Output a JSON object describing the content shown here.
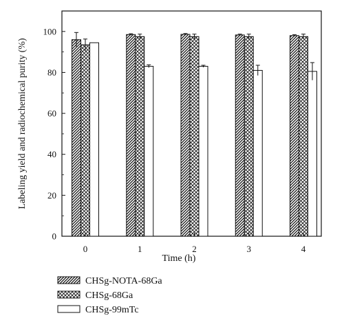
{
  "chart_data": {
    "type": "bar",
    "xlabel": "Time (h)",
    "ylabel": "Labeling yield and radiochemical purity (%)",
    "categories": [
      "0",
      "1",
      "2",
      "3",
      "4"
    ],
    "ylim": [
      0,
      110
    ],
    "yticks": [
      0,
      20,
      40,
      60,
      80,
      100
    ],
    "grid": false,
    "legend_position": "bottom-left",
    "series": [
      {
        "name": "CHSg-NOTA-68Ga",
        "pattern": "diagonal-hatch",
        "values": [
          96,
          98.5,
          98.6,
          98.3,
          98
        ],
        "errors": [
          3.5,
          0.4,
          0.4,
          0.4,
          0.4
        ]
      },
      {
        "name": "CHSg-68Ga",
        "pattern": "crosshatch",
        "values": [
          93.5,
          97.5,
          97.5,
          97.5,
          97.5
        ],
        "errors": [
          2.8,
          1.2,
          1.2,
          1.2,
          1.2
        ]
      },
      {
        "name": "CHSg-99mTc",
        "pattern": "none",
        "values": [
          94.5,
          83,
          83,
          81,
          80.5
        ],
        "errors": [
          0,
          0.7,
          0.5,
          2.5,
          4.3
        ]
      }
    ]
  }
}
